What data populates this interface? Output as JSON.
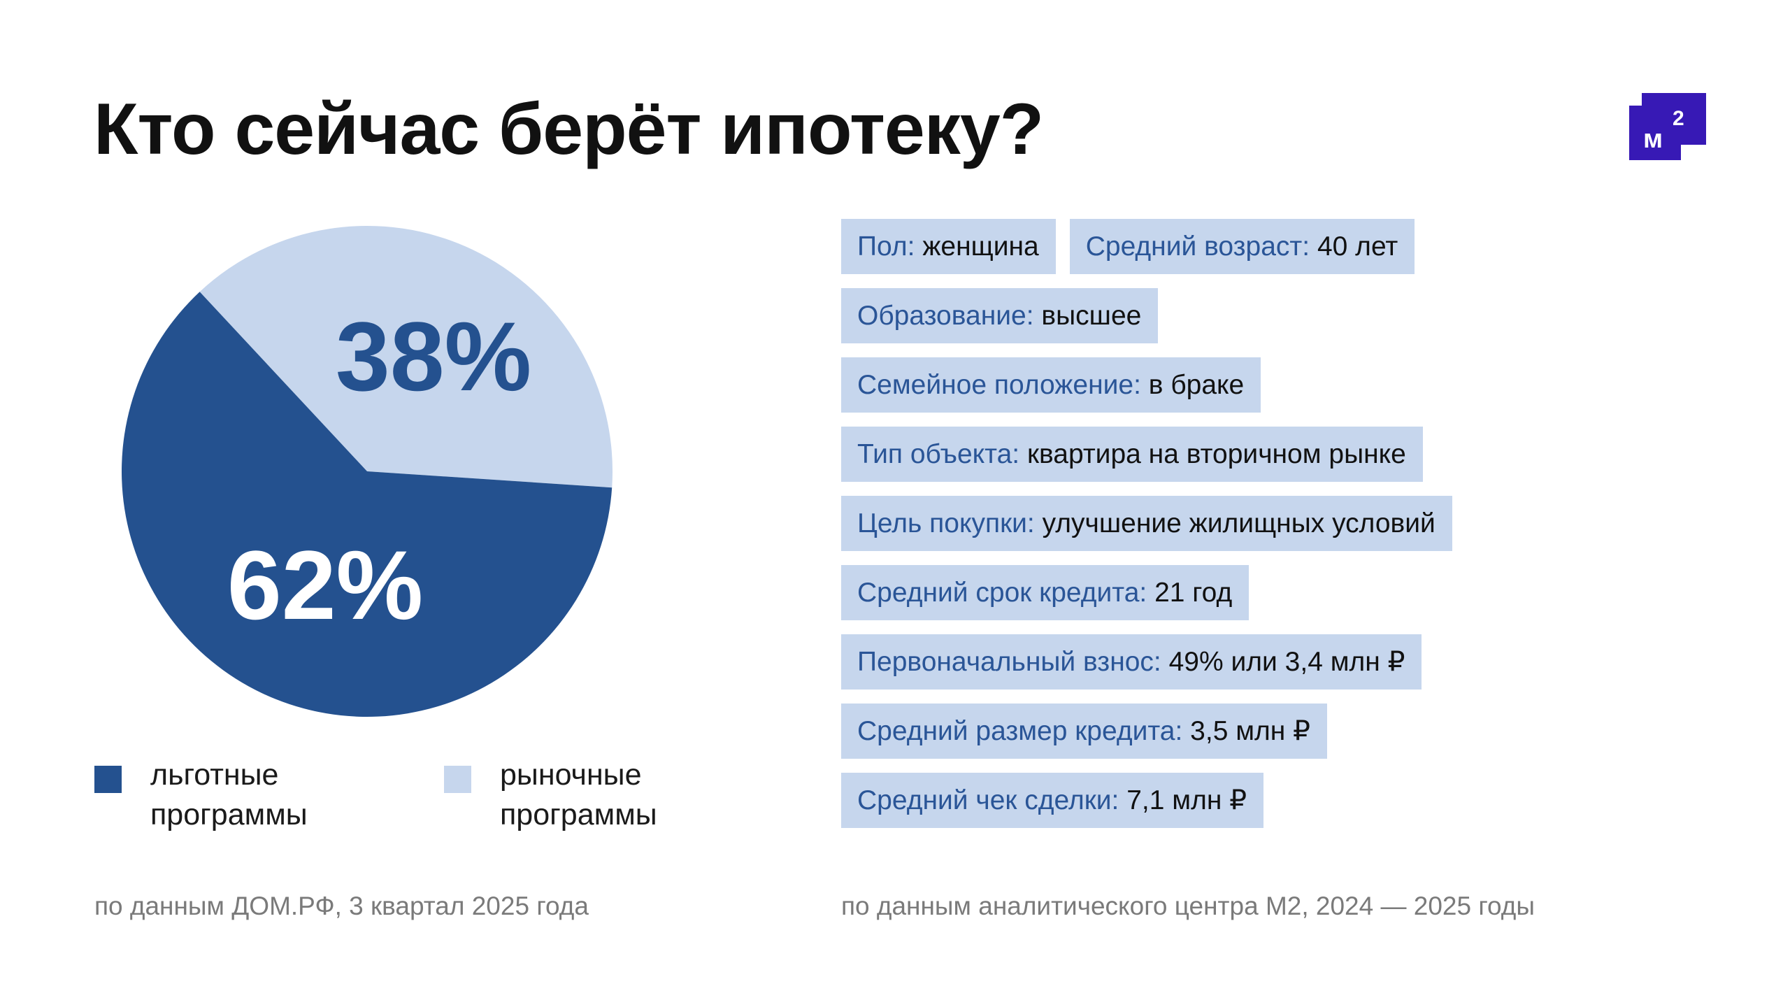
{
  "title": "Кто сейчас берёт ипотеку?",
  "logo": {
    "text": "М2",
    "color": "#3719b5"
  },
  "chart_data": {
    "type": "pie",
    "slices": [
      {
        "name": "льготные программы",
        "value": 62,
        "label": "62%",
        "color": "#24518f"
      },
      {
        "name": "рыночные программы",
        "value": 38,
        "label": "38%",
        "color": "#c6d6ed"
      }
    ],
    "legend": [
      {
        "line1": "льготные",
        "line2": "программы"
      },
      {
        "line1": "рыночные",
        "line2": "программы"
      }
    ],
    "legend_position": "bottom"
  },
  "footnotes": {
    "left": "по данным ДОМ.РФ, 3 квартал 2025 года",
    "right": "по данным аналитического центра М2, 2024 — 2025 годы"
  },
  "facts": [
    {
      "key": "Пол:",
      "value": "женщина"
    },
    {
      "key": "Средний возраст:",
      "value": "40 лет"
    },
    {
      "key": "Образование:",
      "value": "высшее"
    },
    {
      "key": "Семейное положение:",
      "value": "в браке"
    },
    {
      "key": "Тип объекта:",
      "value": "квартира на вторичном рынке"
    },
    {
      "key": "Цель покупки:",
      "value": "улучшение жилищных условий"
    },
    {
      "key": "Средний срок кредита:",
      "value": "21 год"
    },
    {
      "key": "Первоначальный взнос:",
      "value": "49% или 3,4 млн ₽"
    },
    {
      "key": "Средний размер кредита:",
      "value": "3,5 млн ₽"
    },
    {
      "key": "Средний чек сделки:",
      "value": "7,1 млн ₽"
    }
  ]
}
